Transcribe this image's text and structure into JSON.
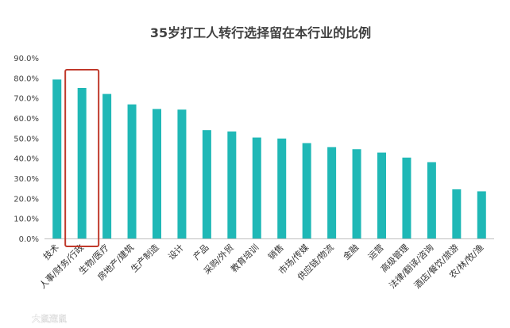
{
  "watermark": "大鼠遛鼠",
  "colors": {
    "bar": "#1fb8b6",
    "highlight_box": "#c0392b",
    "axis": "#bfbfbf",
    "text": "#404040"
  },
  "chart_data": {
    "type": "bar",
    "title": "35岁打工人转行选择留在本行业的比例",
    "xlabel": "",
    "ylabel": "",
    "ylim": [
      0,
      90
    ],
    "yticks": [
      "0.0%",
      "10.0%",
      "20.0%",
      "30.0%",
      "40.0%",
      "50.0%",
      "60.0%",
      "70.0%",
      "80.0%",
      "90.0%"
    ],
    "grid": false,
    "legend": "none",
    "categories": [
      "技术",
      "人事/财务/行政",
      "生物/医疗",
      "房地产/建筑",
      "生产制造",
      "设计",
      "产品",
      "采购/外贸",
      "教育培训",
      "销售",
      "市场/传媒",
      "供应链/物流",
      "金融",
      "运营",
      "高级管理",
      "法律/翻译/咨询",
      "酒店/餐饮/旅游",
      "农/林/牧/渔"
    ],
    "values": [
      79.2,
      75.0,
      72.0,
      66.8,
      64.5,
      64.2,
      54.0,
      53.3,
      50.3,
      49.8,
      47.5,
      45.5,
      44.5,
      42.8,
      40.3,
      38.0,
      24.5,
      23.5
    ],
    "highlighted_category": "人事/财务/行政"
  }
}
